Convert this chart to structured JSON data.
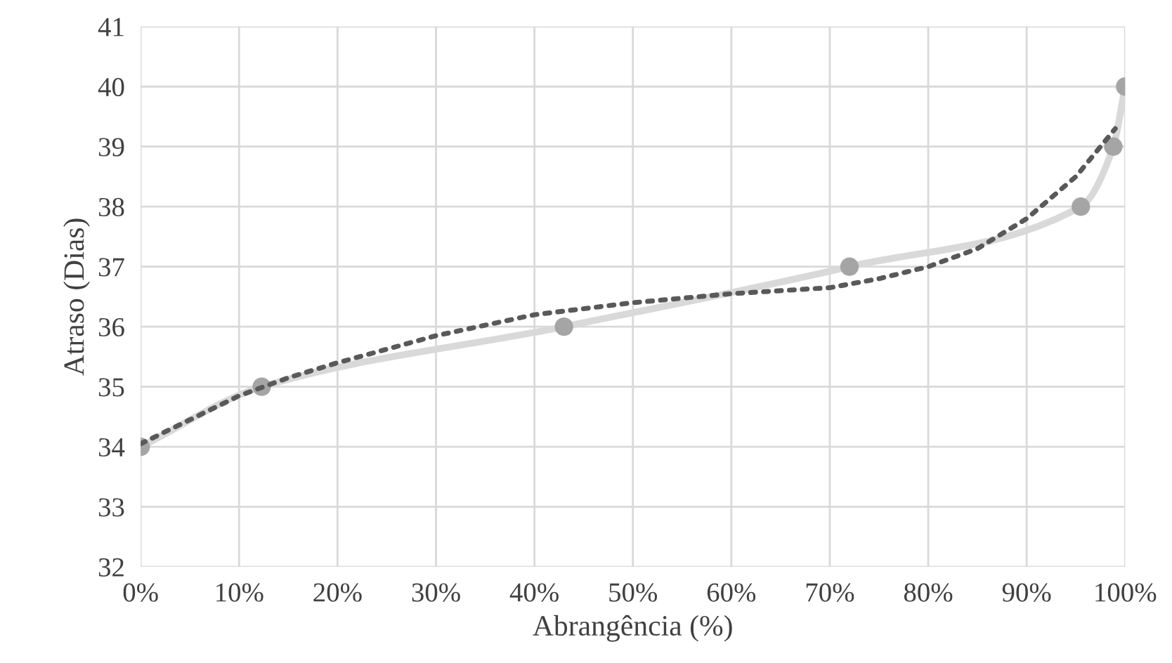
{
  "chart_data": {
    "type": "scatter",
    "xlabel": "Abrangência (%)",
    "ylabel": "Atraso (Dias)",
    "xlim": [
      0,
      100
    ],
    "ylim": [
      32,
      41
    ],
    "xticks": [
      {
        "value": 0,
        "label": "0%"
      },
      {
        "value": 10,
        "label": "10%"
      },
      {
        "value": 20,
        "label": "20%"
      },
      {
        "value": 30,
        "label": "30%"
      },
      {
        "value": 40,
        "label": "40%"
      },
      {
        "value": 50,
        "label": "50%"
      },
      {
        "value": 60,
        "label": "60%"
      },
      {
        "value": 70,
        "label": "70%"
      },
      {
        "value": 80,
        "label": "80%"
      },
      {
        "value": 90,
        "label": "90%"
      },
      {
        "value": 100,
        "label": "100%"
      }
    ],
    "yticks": [
      32,
      33,
      34,
      35,
      36,
      37,
      38,
      39,
      40,
      41
    ],
    "grid": true,
    "series": [
      {
        "type": "line",
        "color": "#d9d9d9",
        "marker": "none",
        "line_style": "solid",
        "x": [
          0,
          12.3,
          43,
          72,
          95.5,
          98.8,
          100
        ],
        "values": [
          34,
          35,
          36,
          37,
          38,
          39,
          40
        ]
      },
      {
        "color": "#a5a5a5",
        "marker": "circle",
        "x": [
          0,
          12.3,
          43,
          72,
          95.5,
          98.8,
          100
        ],
        "values": [
          34,
          35,
          36,
          37,
          38,
          39,
          40
        ]
      },
      {
        "type": "line",
        "color": "#595959",
        "marker": "none",
        "line_style": "dotted",
        "x": [
          0,
          5,
          10,
          15,
          20,
          30,
          40,
          50,
          60,
          70,
          75,
          80,
          85,
          90,
          95,
          99
        ],
        "values": [
          34.05,
          34.45,
          34.85,
          35.15,
          35.4,
          35.85,
          36.2,
          36.4,
          36.55,
          36.65,
          36.8,
          37.0,
          37.3,
          37.8,
          38.5,
          39.3
        ]
      }
    ]
  }
}
